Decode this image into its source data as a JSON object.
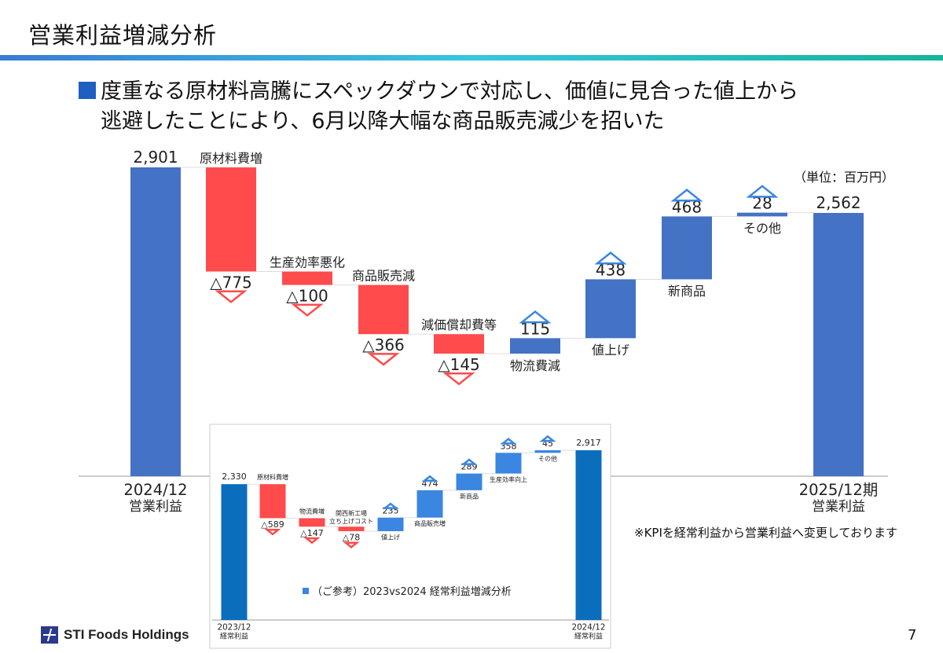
{
  "page": {
    "title": "営業利益増減分析",
    "headline_line1": "度重なる原材料高騰にスペックダウンで対応し、価値に見合った値上から",
    "headline_line2": "逃避したことにより、6月以降大幅な商品販売減少を招いた",
    "unit_note": "（単位：百万円）",
    "kpi_note": "※KPIを経常利益から営業利益へ変更しております",
    "logo_text": "STI Foods Holdings",
    "page_number": "7"
  },
  "colors": {
    "total": "#4472c4",
    "decrease": "#ff4b4b",
    "increase": "#4472c4",
    "inset_total": "#0a6ebd",
    "inset_increase": "#3a86e0"
  },
  "chart_data": [
    {
      "type": "waterfall",
      "title": "",
      "items": [
        {
          "label": "2024/12",
          "label2": "営業利益",
          "value": 2901,
          "kind": "total",
          "display": "2,901"
        },
        {
          "label": "原材料費増",
          "value": -775,
          "kind": "delta",
          "display": "△775"
        },
        {
          "label": "生産効率悪化",
          "value": -100,
          "kind": "delta",
          "display": "△100"
        },
        {
          "label": "商品販売減",
          "value": -366,
          "kind": "delta",
          "display": "△366"
        },
        {
          "label": "減価償却費等",
          "value": -145,
          "kind": "delta",
          "display": "△145"
        },
        {
          "label": "物流費減",
          "value": 115,
          "kind": "delta",
          "display": "115"
        },
        {
          "label": "値上げ",
          "value": 438,
          "kind": "delta",
          "display": "438"
        },
        {
          "label": "新商品",
          "value": 468,
          "kind": "delta",
          "display": "468"
        },
        {
          "label": "その他",
          "value": 28,
          "kind": "delta",
          "display": "28"
        },
        {
          "label": "2025/12期",
          "label2": "営業利益",
          "value": 2562,
          "kind": "total",
          "display": "2,562"
        }
      ]
    },
    {
      "type": "waterfall",
      "title": "（ご参考）2023vs2024 経常利益増減分析",
      "items": [
        {
          "label": "2023/12",
          "label2": "経常利益",
          "value": 2330,
          "kind": "total",
          "display": "2,330"
        },
        {
          "label": "原材料費増",
          "value": -589,
          "kind": "delta",
          "display": "△589"
        },
        {
          "label": "物流費増",
          "value": -147,
          "kind": "delta",
          "display": "△147"
        },
        {
          "label": "関西新工場",
          "label2": "立ち上げコスト",
          "value": -78,
          "kind": "delta",
          "display": "△78"
        },
        {
          "label": "値上げ",
          "value": 235,
          "kind": "delta",
          "display": "235"
        },
        {
          "label": "商品販売増",
          "value": 474,
          "kind": "delta",
          "display": "474"
        },
        {
          "label": "新商品",
          "value": 289,
          "kind": "delta",
          "display": "289"
        },
        {
          "label": "生産効率向上",
          "value": 358,
          "kind": "delta",
          "display": "358"
        },
        {
          "label": "その他",
          "value": 45,
          "kind": "delta",
          "display": "45"
        },
        {
          "label": "2024/12",
          "label2": "経常利益",
          "value": 2917,
          "kind": "total",
          "display": "2,917"
        }
      ]
    }
  ]
}
